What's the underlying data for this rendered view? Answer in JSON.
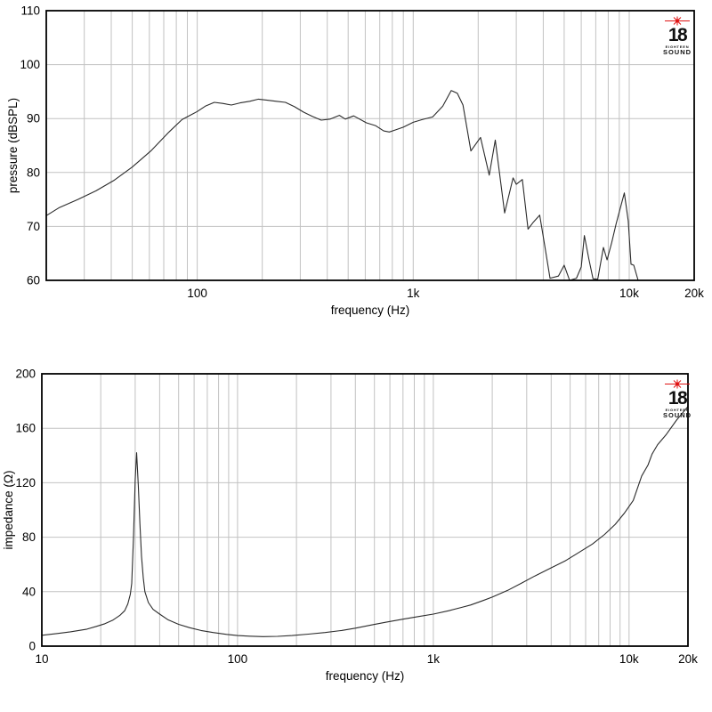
{
  "page": {
    "background": "#ffffff"
  },
  "logo": {
    "number": "18",
    "line1": "EIGHTEEN",
    "line2": "SOUND",
    "star_color": "#e01212",
    "text_color": "#111111"
  },
  "chart_data": [
    {
      "type": "line",
      "name": "spl-response",
      "title": "",
      "xlabel": "frequency (Hz)",
      "ylabel": "pressure (dBSPL)",
      "x_scale": "log",
      "x_range": [
        20,
        20000
      ],
      "y_range": [
        60,
        110
      ],
      "y_ticks": [
        60,
        70,
        80,
        90,
        100,
        110
      ],
      "x_ticks": [
        {
          "value": 100,
          "label": "100"
        },
        {
          "value": 1000,
          "label": "1k"
        },
        {
          "value": 10000,
          "label": "10k"
        },
        {
          "value": 20000,
          "label": "20k"
        }
      ],
      "grid": "log-minor",
      "grid_color": "#c2c2c2",
      "frame_color": "#000000",
      "line_color": "#2b2b2b",
      "legend": "none",
      "series": [
        {
          "name": "pressure",
          "points": [
            [
              20,
              72
            ],
            [
              23,
              73.5
            ],
            [
              28,
              75
            ],
            [
              34,
              76.6
            ],
            [
              41,
              78.5
            ],
            [
              50,
              81
            ],
            [
              61,
              84
            ],
            [
              74,
              87.5
            ],
            [
              85,
              89.8
            ],
            [
              100,
              91.3
            ],
            [
              109,
              92.3
            ],
            [
              120,
              93.0
            ],
            [
              131,
              92.8
            ],
            [
              144,
              92.5
            ],
            [
              158,
              92.9
            ],
            [
              175,
              93.2
            ],
            [
              192,
              93.6
            ],
            [
              211,
              93.4
            ],
            [
              232,
              93.2
            ],
            [
              256,
              93.0
            ],
            [
              282,
              92.2
            ],
            [
              310,
              91.2
            ],
            [
              341,
              90.4
            ],
            [
              375,
              89.7
            ],
            [
              413,
              89.9
            ],
            [
              455,
              90.6
            ],
            [
              485,
              89.9
            ],
            [
              530,
              90.5
            ],
            [
              607,
              89.2
            ],
            [
              668,
              88.7
            ],
            [
              730,
              87.7
            ],
            [
              775,
              87.5
            ],
            [
              830,
              87.9
            ],
            [
              900,
              88.4
            ],
            [
              1000,
              89.3
            ],
            [
              1100,
              89.8
            ],
            [
              1230,
              90.3
            ],
            [
              1370,
              92.3
            ],
            [
              1500,
              95.2
            ],
            [
              1600,
              94.7
            ],
            [
              1700,
              92.5
            ],
            [
              1850,
              84.0
            ],
            [
              2050,
              86.5
            ],
            [
              2250,
              79.5
            ],
            [
              2400,
              86.0
            ],
            [
              2650,
              72.5
            ],
            [
              2900,
              79.0
            ],
            [
              3000,
              77.8
            ],
            [
              3200,
              78.7
            ],
            [
              3400,
              69.5
            ],
            [
              3600,
              70.8
            ],
            [
              3850,
              72.1
            ],
            [
              4050,
              66.8
            ],
            [
              4300,
              60.4
            ],
            [
              4700,
              60.8
            ],
            [
              5000,
              62.8
            ],
            [
              5300,
              60.0
            ],
            [
              5700,
              60.4
            ],
            [
              6000,
              62.5
            ],
            [
              6200,
              68.3
            ],
            [
              6500,
              64.0
            ],
            [
              6800,
              60.3
            ],
            [
              7150,
              60.2
            ],
            [
              7600,
              66.1
            ],
            [
              7900,
              63.8
            ],
            [
              8300,
              67.0
            ],
            [
              8700,
              70.5
            ],
            [
              9500,
              76.2
            ],
            [
              9900,
              71.0
            ],
            [
              10200,
              63.0
            ],
            [
              10500,
              62.8
            ],
            [
              11000,
              60.0
            ]
          ]
        }
      ]
    },
    {
      "type": "line",
      "name": "impedance-curve",
      "title": "",
      "xlabel": "frequency (Hz)",
      "ylabel": "impedance (Ω)",
      "x_scale": "log",
      "x_range": [
        10,
        20000
      ],
      "y_range": [
        0,
        200
      ],
      "y_ticks": [
        0,
        40,
        80,
        120,
        160,
        200
      ],
      "x_ticks": [
        {
          "value": 10,
          "label": "10"
        },
        {
          "value": 100,
          "label": "100"
        },
        {
          "value": 1000,
          "label": "1k"
        },
        {
          "value": 10000,
          "label": "10k"
        },
        {
          "value": 20000,
          "label": "20k"
        }
      ],
      "grid": "log-minor",
      "grid_color": "#c2c2c2",
      "frame_color": "#000000",
      "line_color": "#2b2b2b",
      "legend": "none",
      "series": [
        {
          "name": "impedance",
          "points": [
            [
              10,
              8
            ],
            [
              12,
              9.3
            ],
            [
              14,
              10.5
            ],
            [
              17,
              12.5
            ],
            [
              19,
              14.5
            ],
            [
              21,
              16.5
            ],
            [
              23,
              19
            ],
            [
              25,
              22.5
            ],
            [
              26.5,
              26
            ],
            [
              27.5,
              31
            ],
            [
              28.3,
              38
            ],
            [
              28.8,
              46
            ],
            [
              29.4,
              80
            ],
            [
              30,
              122
            ],
            [
              30.5,
              142
            ],
            [
              31.1,
              118
            ],
            [
              31.7,
              90
            ],
            [
              32.3,
              66
            ],
            [
              33,
              50
            ],
            [
              33.6,
              40
            ],
            [
              35,
              32
            ],
            [
              37,
              27
            ],
            [
              40,
              23.5
            ],
            [
              44,
              19.5
            ],
            [
              50,
              16
            ],
            [
              57,
              13.5
            ],
            [
              65,
              11.5
            ],
            [
              75,
              10
            ],
            [
              88,
              8.6
            ],
            [
              100,
              7.8
            ],
            [
              115,
              7.3
            ],
            [
              135,
              7
            ],
            [
              160,
              7.2
            ],
            [
              190,
              7.8
            ],
            [
              230,
              8.8
            ],
            [
              280,
              10
            ],
            [
              340,
              11.5
            ],
            [
              400,
              13.2
            ],
            [
              480,
              15.5
            ],
            [
              570,
              17.5
            ],
            [
              700,
              19.8
            ],
            [
              850,
              21.8
            ],
            [
              1000,
              23.5
            ],
            [
              1200,
              26
            ],
            [
              1400,
              28.5
            ],
            [
              1550,
              30.2
            ],
            [
              1800,
              33.5
            ],
            [
              2000,
              36
            ],
            [
              2400,
              41
            ],
            [
              2800,
              46
            ],
            [
              3300,
              51.5
            ],
            [
              4000,
              57.5
            ],
            [
              4700,
              62.5
            ],
            [
              5500,
              68.5
            ],
            [
              6500,
              75
            ],
            [
              7500,
              82
            ],
            [
              8500,
              89.5
            ],
            [
              9500,
              98
            ],
            [
              10500,
              107
            ],
            [
              11600,
              125
            ],
            [
              12500,
              133
            ],
            [
              13100,
              141
            ],
            [
              14000,
              148
            ],
            [
              15500,
              155.5
            ],
            [
              17500,
              166
            ],
            [
              20000,
              176
            ]
          ]
        }
      ]
    }
  ]
}
